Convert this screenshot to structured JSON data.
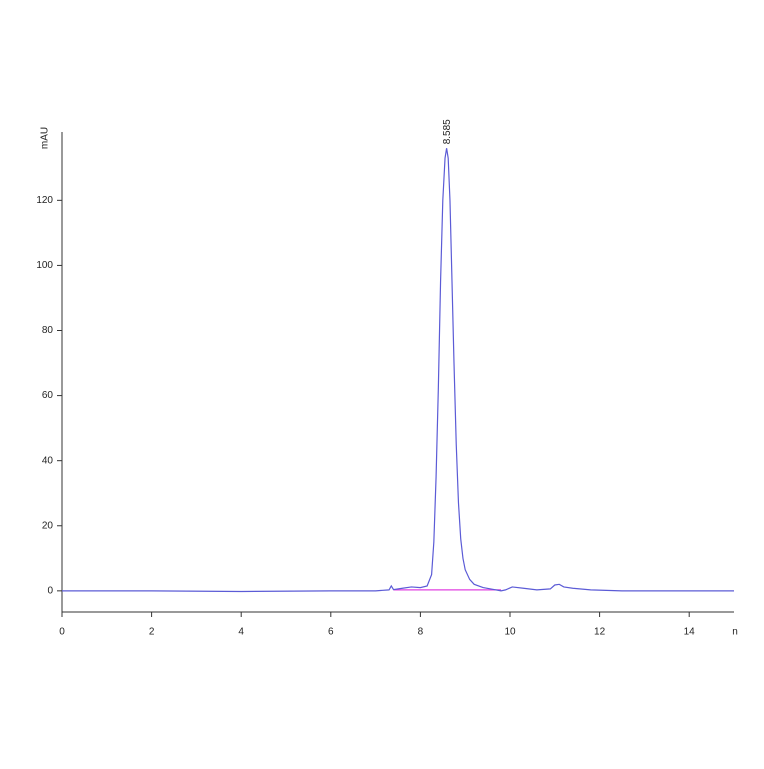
{
  "chart_data": {
    "type": "line",
    "ylabel": "mAU",
    "xlabel": "n",
    "xlim": [
      0,
      15
    ],
    "ylim": [
      -6.5,
      141
    ],
    "xticks": [
      0,
      2,
      4,
      6,
      8,
      10,
      12,
      14
    ],
    "yticks": [
      0,
      20,
      40,
      60,
      80,
      100,
      120
    ],
    "series": [
      {
        "color": "#5b5bd6",
        "x": [
          0,
          2,
          4,
          6,
          7,
          7.3,
          7.35,
          7.4,
          7.6,
          7.8,
          8.0,
          8.15,
          8.25,
          8.3,
          8.35,
          8.4,
          8.45,
          8.5,
          8.55,
          8.585,
          8.62,
          8.66,
          8.7,
          8.75,
          8.8,
          8.85,
          8.9,
          8.95,
          9.0,
          9.1,
          9.2,
          9.4,
          9.6,
          9.8,
          9.9,
          10.05,
          10.3,
          10.6,
          10.9,
          11.0,
          11.1,
          11.2,
          11.4,
          11.8,
          12.5,
          14,
          15
        ],
        "values": [
          0,
          0,
          -0.2,
          0,
          0,
          0.3,
          1.5,
          0.4,
          0.8,
          1.2,
          1.0,
          1.5,
          5,
          15,
          35,
          62,
          95,
          120,
          133,
          136,
          133,
          120,
          98,
          70,
          45,
          27,
          16,
          10,
          6.5,
          3.5,
          2,
          1,
          0.5,
          0,
          0.3,
          1.2,
          0.8,
          0.3,
          0.6,
          1.8,
          2,
          1.2,
          0.8,
          0.3,
          0,
          0,
          0
        ]
      },
      {
        "color": "#e040e0",
        "x": [
          7.4,
          9.8
        ],
        "values": [
          0.3,
          0.3
        ]
      }
    ],
    "annotations": [
      {
        "text": "8.585",
        "x": 8.585,
        "y": 136
      }
    ]
  }
}
